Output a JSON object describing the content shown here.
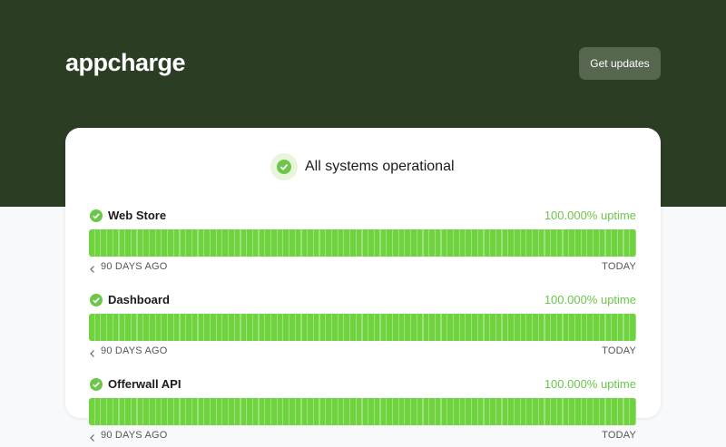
{
  "header": {
    "brand": "appcharge",
    "button": "Get updates"
  },
  "status": {
    "title": "All systems operational"
  },
  "components": [
    {
      "name": "Web Store",
      "uptime": "100.000% uptime",
      "start": "90 DAYS AGO",
      "end": "TODAY"
    },
    {
      "name": "Dashboard",
      "uptime": "100.000% uptime",
      "start": "90 DAYS AGO",
      "end": "TODAY"
    },
    {
      "name": "Offerwall API",
      "uptime": "100.000% uptime",
      "start": "90 DAYS AGO",
      "end": "TODAY"
    }
  ]
}
